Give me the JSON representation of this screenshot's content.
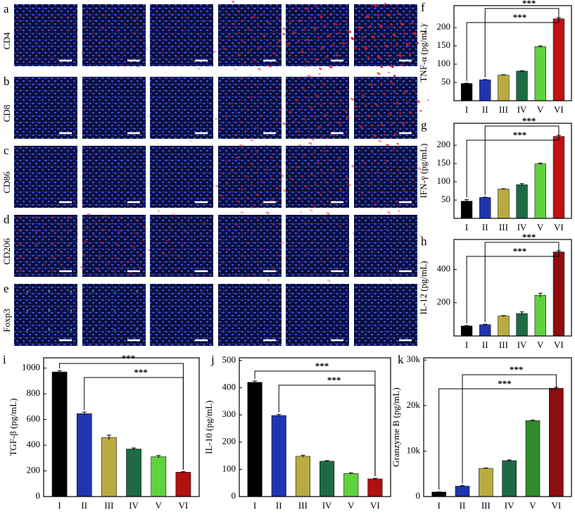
{
  "image_rows": [
    {
      "letter": "a",
      "label": "CD4"
    },
    {
      "letter": "b",
      "label": "CD8"
    },
    {
      "letter": "c",
      "label": "CD86"
    },
    {
      "letter": "d",
      "label": "CD206"
    },
    {
      "letter": "e",
      "label": "Foxp3"
    }
  ],
  "chart_data": [
    {
      "type": "bar",
      "letter": "f",
      "ylabel": "TNF-α (pg/mL)",
      "categories": [
        "I",
        "II",
        "III",
        "IV",
        "V",
        "VI"
      ],
      "values": [
        47,
        57,
        70,
        81,
        148,
        224
      ],
      "errors": [
        1,
        1,
        1,
        1,
        2,
        3
      ],
      "colors": [
        "#000000",
        "#1f35b0",
        "#b9ab3f",
        "#1d6a45",
        "#5fd23c",
        "#c01212"
      ],
      "ylim": [
        0,
        260
      ],
      "yticks": [
        50,
        100,
        150,
        200
      ],
      "annotations": [
        "***",
        "***"
      ]
    },
    {
      "type": "bar",
      "letter": "g",
      "ylabel": "IFN-γ (pg/mL)",
      "categories": [
        "I",
        "II",
        "III",
        "IV",
        "V",
        "VI"
      ],
      "values": [
        47,
        57,
        80,
        92,
        149,
        224
      ],
      "errors": [
        4,
        1,
        1,
        3,
        2,
        3
      ],
      "colors": [
        "#000000",
        "#1f35b0",
        "#b9ab3f",
        "#1d6a45",
        "#5fd23c",
        "#c01212"
      ],
      "ylim": [
        0,
        260
      ],
      "yticks": [
        50,
        100,
        150,
        200
      ],
      "annotations": [
        "***",
        "***"
      ]
    },
    {
      "type": "bar",
      "letter": "h",
      "ylabel": "IL-12 (pg/mL)",
      "categories": [
        "I",
        "II",
        "III",
        "IV",
        "V",
        "VI"
      ],
      "values": [
        60,
        68,
        120,
        135,
        245,
        505
      ],
      "errors": [
        3,
        3,
        3,
        10,
        12,
        8
      ],
      "colors": [
        "#000000",
        "#1f35b0",
        "#b9ab3f",
        "#1d6a45",
        "#5fd23c",
        "#8e0d0d"
      ],
      "ylim": [
        0,
        580
      ],
      "yticks": [
        200,
        400
      ],
      "annotations": [
        "***",
        "***"
      ]
    },
    {
      "type": "bar",
      "letter": "i",
      "ylabel": "TGF-β (pg/mL)",
      "categories": [
        "I",
        "II",
        "III",
        "IV",
        "V",
        "VI"
      ],
      "values": [
        970,
        645,
        460,
        370,
        310,
        190
      ],
      "errors": [
        10,
        12,
        18,
        8,
        10,
        4
      ],
      "colors": [
        "#000000",
        "#1f35b0",
        "#b9ab3f",
        "#1d6a45",
        "#5fd23c",
        "#b01010"
      ],
      "ylim": [
        0,
        1080
      ],
      "yticks": [
        0,
        200,
        400,
        600,
        800,
        1000
      ],
      "annotations": [
        "***",
        "***"
      ]
    },
    {
      "type": "bar",
      "letter": "j",
      "ylabel": "IL-10 (pg/mL)",
      "categories": [
        "I",
        "II",
        "III",
        "IV",
        "V",
        "VI"
      ],
      "values": [
        420,
        298,
        148,
        130,
        85,
        65
      ],
      "errors": [
        5,
        4,
        4,
        2,
        2,
        2
      ],
      "colors": [
        "#000000",
        "#1f35b0",
        "#b9ab3f",
        "#1d6a45",
        "#5fd23c",
        "#b01010"
      ],
      "ylim": [
        0,
        510
      ],
      "yticks": [
        0,
        100,
        200,
        300,
        400,
        500
      ],
      "annotations": [
        "***",
        "***"
      ]
    },
    {
      "type": "bar",
      "letter": "k",
      "ylabel": "Granzyme B (pg/mL)",
      "categories": [
        "I",
        "II",
        "III",
        "IV",
        "V",
        "VI"
      ],
      "values": [
        1000,
        2300,
        6200,
        7900,
        16700,
        23800
      ],
      "errors": [
        50,
        100,
        80,
        150,
        120,
        200
      ],
      "colors": [
        "#000000",
        "#1f35b0",
        "#b9ab3f",
        "#1d6a45",
        "#2e8c2a",
        "#8e0d0d"
      ],
      "ylim": [
        0,
        30500
      ],
      "yticks": [
        0,
        {
          "value": 10000,
          "label": "10k"
        },
        {
          "value": 20000,
          "label": "20k"
        },
        {
          "value": 30000,
          "label": "30k"
        }
      ],
      "annotations": [
        "***",
        "***"
      ]
    }
  ]
}
